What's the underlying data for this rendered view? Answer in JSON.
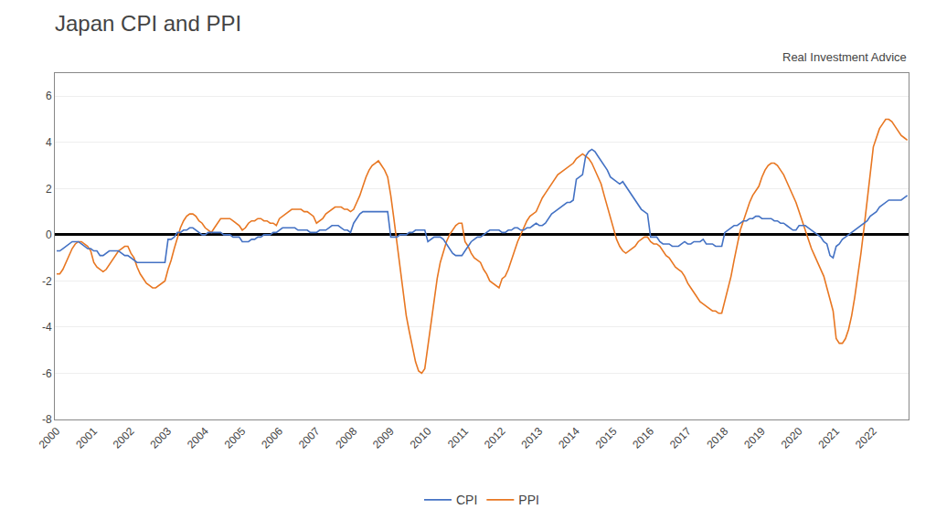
{
  "chart_data": {
    "type": "line",
    "title": "Japan CPI and PPI",
    "annotations": [
      "Real Investment Advice"
    ],
    "x": [
      2000,
      2000.0833,
      2000.1667,
      2000.25,
      2000.3333,
      2000.4167,
      2000.5,
      2000.5833,
      2000.6667,
      2000.75,
      2000.8333,
      2000.9167,
      2001,
      2001.0833,
      2001.1667,
      2001.25,
      2001.3333,
      2001.4167,
      2001.5,
      2001.5833,
      2001.6667,
      2001.75,
      2001.8333,
      2001.9167,
      2002,
      2002.0833,
      2002.1667,
      2002.25,
      2002.3333,
      2002.4167,
      2002.5,
      2002.5833,
      2002.6667,
      2002.75,
      2002.8333,
      2002.9167,
      2003,
      2003.0833,
      2003.1667,
      2003.25,
      2003.3333,
      2003.4167,
      2003.5,
      2003.5833,
      2003.6667,
      2003.75,
      2003.8333,
      2003.9167,
      2004,
      2004.0833,
      2004.1667,
      2004.25,
      2004.3333,
      2004.4167,
      2004.5,
      2004.5833,
      2004.6667,
      2004.75,
      2004.8333,
      2004.9167,
      2005,
      2005.0833,
      2005.1667,
      2005.25,
      2005.3333,
      2005.4167,
      2005.5,
      2005.5833,
      2005.6667,
      2005.75,
      2005.8333,
      2005.9167,
      2006,
      2006.0833,
      2006.1667,
      2006.25,
      2006.3333,
      2006.4167,
      2006.5,
      2006.5833,
      2006.6667,
      2006.75,
      2006.8333,
      2006.9167,
      2007,
      2007.0833,
      2007.1667,
      2007.25,
      2007.3333,
      2007.4167,
      2007.5,
      2007.5833,
      2007.6667,
      2007.75,
      2007.8333,
      2007.9167,
      2008,
      2008.0833,
      2008.1667,
      2008.25,
      2008.3333,
      2008.4167,
      2008.5,
      2008.5833,
      2008.6667,
      2008.75,
      2008.8333,
      2008.9167,
      2009,
      2009.0833,
      2009.1667,
      2009.25,
      2009.3333,
      2009.4167,
      2009.5,
      2009.5833,
      2009.6667,
      2009.75,
      2009.8333,
      2009.9167,
      2010,
      2010.0833,
      2010.1667,
      2010.25,
      2010.3333,
      2010.4167,
      2010.5,
      2010.5833,
      2010.6667,
      2010.75,
      2010.8333,
      2010.9167,
      2011,
      2011.0833,
      2011.1667,
      2011.25,
      2011.3333,
      2011.4167,
      2011.5,
      2011.5833,
      2011.6667,
      2011.75,
      2011.8333,
      2011.9167,
      2012,
      2012.0833,
      2012.1667,
      2012.25,
      2012.3333,
      2012.4167,
      2012.5,
      2012.5833,
      2012.6667,
      2012.75,
      2012.8333,
      2012.9167,
      2013,
      2013.0833,
      2013.1667,
      2013.25,
      2013.3333,
      2013.4167,
      2013.5,
      2013.5833,
      2013.6667,
      2013.75,
      2013.8333,
      2013.9167,
      2014,
      2014.0833,
      2014.1667,
      2014.25,
      2014.3333,
      2014.4167,
      2014.5,
      2014.5833,
      2014.6667,
      2014.75,
      2014.8333,
      2014.9167,
      2015,
      2015.0833,
      2015.1667,
      2015.25,
      2015.3333,
      2015.4167,
      2015.5,
      2015.5833,
      2015.6667,
      2015.75,
      2015.8333,
      2015.9167,
      2016,
      2016.0833,
      2016.1667,
      2016.25,
      2016.3333,
      2016.4167,
      2016.5,
      2016.5833,
      2016.6667,
      2016.75,
      2016.8333,
      2016.9167,
      2017,
      2017.0833,
      2017.1667,
      2017.25,
      2017.3333,
      2017.4167,
      2017.5,
      2017.5833,
      2017.6667,
      2017.75,
      2017.8333,
      2017.9167,
      2018,
      2018.0833,
      2018.1667,
      2018.25,
      2018.3333,
      2018.4167,
      2018.5,
      2018.5833,
      2018.6667,
      2018.75,
      2018.8333,
      2018.9167,
      2019,
      2019.0833,
      2019.1667,
      2019.25,
      2019.3333,
      2019.4167,
      2019.5,
      2019.5833,
      2019.6667,
      2019.75,
      2019.8333,
      2019.9167,
      2020,
      2020.0833,
      2020.1667,
      2020.25,
      2020.3333,
      2020.4167,
      2020.5,
      2020.5833,
      2020.6667,
      2020.75,
      2020.8333,
      2020.9167,
      2021,
      2021.0833,
      2021.1667,
      2021.25,
      2021.3333,
      2021.4167,
      2021.5,
      2021.5833,
      2021.6667,
      2021.75,
      2021.8333,
      2021.9167,
      2022,
      2022.0833,
      2022.1667,
      2022.25,
      2022.3333,
      2022.4167,
      2022.5,
      2022.5833,
      2022.6667,
      2022.75,
      2022.8333,
      2022.9167
    ],
    "series": [
      {
        "name": "CPI",
        "color": "#4472C4",
        "values": [
          -0.7,
          -0.7,
          -0.6,
          -0.5,
          -0.4,
          -0.3,
          -0.3,
          -0.3,
          -0.4,
          -0.5,
          -0.6,
          -0.6,
          -0.7,
          -0.7,
          -0.9,
          -0.9,
          -0.8,
          -0.7,
          -0.7,
          -0.7,
          -0.7,
          -0.8,
          -0.9,
          -0.9,
          -1.0,
          -1.1,
          -1.2,
          -1.2,
          -1.2,
          -1.2,
          -1.2,
          -1.2,
          -1.2,
          -1.2,
          -1.2,
          -1.2,
          -0.2,
          -0.2,
          -0.1,
          0.1,
          0.1,
          0.2,
          0.2,
          0.3,
          0.3,
          0.2,
          0.1,
          0.0,
          0.0,
          0.1,
          0.1,
          0.1,
          0.1,
          0.1,
          0.0,
          0.0,
          0.0,
          -0.1,
          -0.1,
          -0.1,
          -0.3,
          -0.3,
          -0.3,
          -0.2,
          -0.2,
          -0.1,
          -0.1,
          0.0,
          0.0,
          0.0,
          0.1,
          0.1,
          0.2,
          0.3,
          0.3,
          0.3,
          0.3,
          0.3,
          0.2,
          0.2,
          0.2,
          0.2,
          0.1,
          0.1,
          0.1,
          0.2,
          0.2,
          0.2,
          0.3,
          0.4,
          0.4,
          0.4,
          0.3,
          0.2,
          0.2,
          0.1,
          0.5,
          0.7,
          0.9,
          1.0,
          1.0,
          1.0,
          1.0,
          1.0,
          1.0,
          1.0,
          1.0,
          1.0,
          -0.1,
          -0.1,
          -0.1,
          0.0,
          0.0,
          0.0,
          0.1,
          0.1,
          0.2,
          0.2,
          0.2,
          0.2,
          -0.3,
          -0.2,
          -0.1,
          -0.1,
          -0.1,
          -0.2,
          -0.4,
          -0.6,
          -0.8,
          -0.9,
          -0.9,
          -0.9,
          -0.7,
          -0.5,
          -0.3,
          -0.2,
          -0.1,
          -0.1,
          0.0,
          0.1,
          0.2,
          0.2,
          0.2,
          0.2,
          0.1,
          0.1,
          0.2,
          0.2,
          0.3,
          0.3,
          0.2,
          0.2,
          0.3,
          0.3,
          0.4,
          0.5,
          0.4,
          0.4,
          0.5,
          0.7,
          0.9,
          1.0,
          1.1,
          1.2,
          1.3,
          1.4,
          1.4,
          1.5,
          2.4,
          2.5,
          2.6,
          3.4,
          3.6,
          3.7,
          3.6,
          3.4,
          3.2,
          3.0,
          2.8,
          2.5,
          2.4,
          2.3,
          2.2,
          2.3,
          2.1,
          1.9,
          1.7,
          1.5,
          1.3,
          1.1,
          1.0,
          0.9,
          -0.1,
          -0.1,
          -0.1,
          -0.3,
          -0.4,
          -0.4,
          -0.4,
          -0.5,
          -0.5,
          -0.5,
          -0.4,
          -0.3,
          -0.4,
          -0.4,
          -0.3,
          -0.3,
          -0.3,
          -0.2,
          -0.4,
          -0.4,
          -0.4,
          -0.5,
          -0.5,
          -0.5,
          0.1,
          0.2,
          0.3,
          0.4,
          0.4,
          0.5,
          0.6,
          0.6,
          0.7,
          0.7,
          0.8,
          0.8,
          0.7,
          0.7,
          0.7,
          0.7,
          0.6,
          0.6,
          0.5,
          0.5,
          0.4,
          0.3,
          0.2,
          0.2,
          0.4,
          0.4,
          0.4,
          0.3,
          0.2,
          0.1,
          0.0,
          -0.1,
          -0.3,
          -0.4,
          -0.9,
          -1.0,
          -0.5,
          -0.4,
          -0.2,
          -0.1,
          0.0,
          0.1,
          0.2,
          0.3,
          0.4,
          0.5,
          0.6,
          0.8,
          0.9,
          1.0,
          1.2,
          1.3,
          1.4,
          1.5,
          1.5,
          1.5,
          1.5,
          1.5,
          1.6,
          1.7
        ]
      },
      {
        "name": "PPI",
        "color": "#E87722",
        "values": [
          -1.7,
          -1.7,
          -1.5,
          -1.2,
          -0.9,
          -0.6,
          -0.4,
          -0.3,
          -0.3,
          -0.4,
          -0.5,
          -0.7,
          -1.2,
          -1.4,
          -1.5,
          -1.6,
          -1.5,
          -1.3,
          -1.1,
          -0.9,
          -0.7,
          -0.6,
          -0.5,
          -0.5,
          -0.8,
          -1.0,
          -1.4,
          -1.7,
          -1.9,
          -2.1,
          -2.2,
          -2.3,
          -2.3,
          -2.2,
          -2.1,
          -2.0,
          -1.5,
          -1.1,
          -0.6,
          -0.1,
          0.3,
          0.6,
          0.8,
          0.9,
          0.9,
          0.8,
          0.6,
          0.5,
          0.3,
          0.2,
          0.1,
          0.3,
          0.5,
          0.7,
          0.7,
          0.7,
          0.7,
          0.6,
          0.5,
          0.4,
          0.2,
          0.3,
          0.5,
          0.6,
          0.6,
          0.7,
          0.7,
          0.6,
          0.6,
          0.5,
          0.5,
          0.4,
          0.7,
          0.8,
          0.9,
          1.0,
          1.1,
          1.1,
          1.1,
          1.1,
          1.0,
          1.0,
          0.9,
          0.8,
          0.5,
          0.6,
          0.7,
          0.9,
          1.0,
          1.1,
          1.2,
          1.2,
          1.2,
          1.1,
          1.1,
          1.0,
          1.1,
          1.4,
          1.7,
          2.1,
          2.5,
          2.8,
          3.0,
          3.1,
          3.2,
          3.0,
          2.8,
          2.5,
          1.7,
          0.7,
          -0.3,
          -1.4,
          -2.5,
          -3.5,
          -4.2,
          -4.8,
          -5.5,
          -5.9,
          -6.0,
          -5.8,
          -4.8,
          -3.7,
          -2.7,
          -1.9,
          -1.2,
          -0.7,
          -0.3,
          0.0,
          0.2,
          0.4,
          0.5,
          0.5,
          -0.3,
          -0.5,
          -0.8,
          -1.0,
          -1.1,
          -1.2,
          -1.5,
          -1.7,
          -2.0,
          -2.1,
          -2.2,
          -2.3,
          -1.9,
          -1.8,
          -1.5,
          -1.1,
          -0.7,
          -0.3,
          0.0,
          0.3,
          0.6,
          0.8,
          0.9,
          1.0,
          1.3,
          1.6,
          1.8,
          2.0,
          2.2,
          2.4,
          2.6,
          2.7,
          2.8,
          2.9,
          3.0,
          3.1,
          3.3,
          3.4,
          3.5,
          3.4,
          3.3,
          3.1,
          2.8,
          2.5,
          2.2,
          1.7,
          1.2,
          0.8,
          0.3,
          -0.2,
          -0.5,
          -0.7,
          -0.8,
          -0.7,
          -0.6,
          -0.5,
          -0.3,
          -0.2,
          -0.1,
          -0.1,
          -0.3,
          -0.4,
          -0.4,
          -0.5,
          -0.7,
          -0.9,
          -1.0,
          -1.2,
          -1.4,
          -1.5,
          -1.6,
          -1.8,
          -2.1,
          -2.3,
          -2.5,
          -2.7,
          -2.9,
          -3.0,
          -3.1,
          -3.2,
          -3.3,
          -3.3,
          -3.4,
          -3.4,
          -2.9,
          -2.4,
          -1.8,
          -1.1,
          -0.5,
          0.2,
          0.6,
          1.0,
          1.4,
          1.7,
          1.9,
          2.1,
          2.5,
          2.8,
          3.0,
          3.1,
          3.1,
          3.0,
          2.8,
          2.6,
          2.3,
          2.0,
          1.7,
          1.4,
          1.0,
          0.6,
          0.2,
          -0.2,
          -0.6,
          -0.9,
          -1.2,
          -1.5,
          -1.8,
          -2.3,
          -2.8,
          -3.3,
          -4.5,
          -4.7,
          -4.7,
          -4.5,
          -4.1,
          -3.5,
          -2.7,
          -1.8,
          -0.8,
          0.3,
          1.5,
          2.7,
          3.8,
          4.2,
          4.6,
          4.8,
          5.0,
          5.0,
          4.9,
          4.7,
          4.5,
          4.3,
          4.2,
          4.1
        ]
      }
    ],
    "xlim": [
      1999.95,
      2022.95
    ],
    "xticks": [
      2000,
      2001,
      2002,
      2003,
      2004,
      2005,
      2006,
      2007,
      2008,
      2009,
      2010,
      2011,
      2012,
      2013,
      2014,
      2015,
      2016,
      2017,
      2018,
      2019,
      2020,
      2021,
      2022
    ],
    "ylim": [
      -8,
      7
    ],
    "yticks": [
      -8,
      -6,
      -4,
      -2,
      0,
      2,
      4,
      6
    ],
    "grid": "y",
    "legend": "bottom"
  }
}
